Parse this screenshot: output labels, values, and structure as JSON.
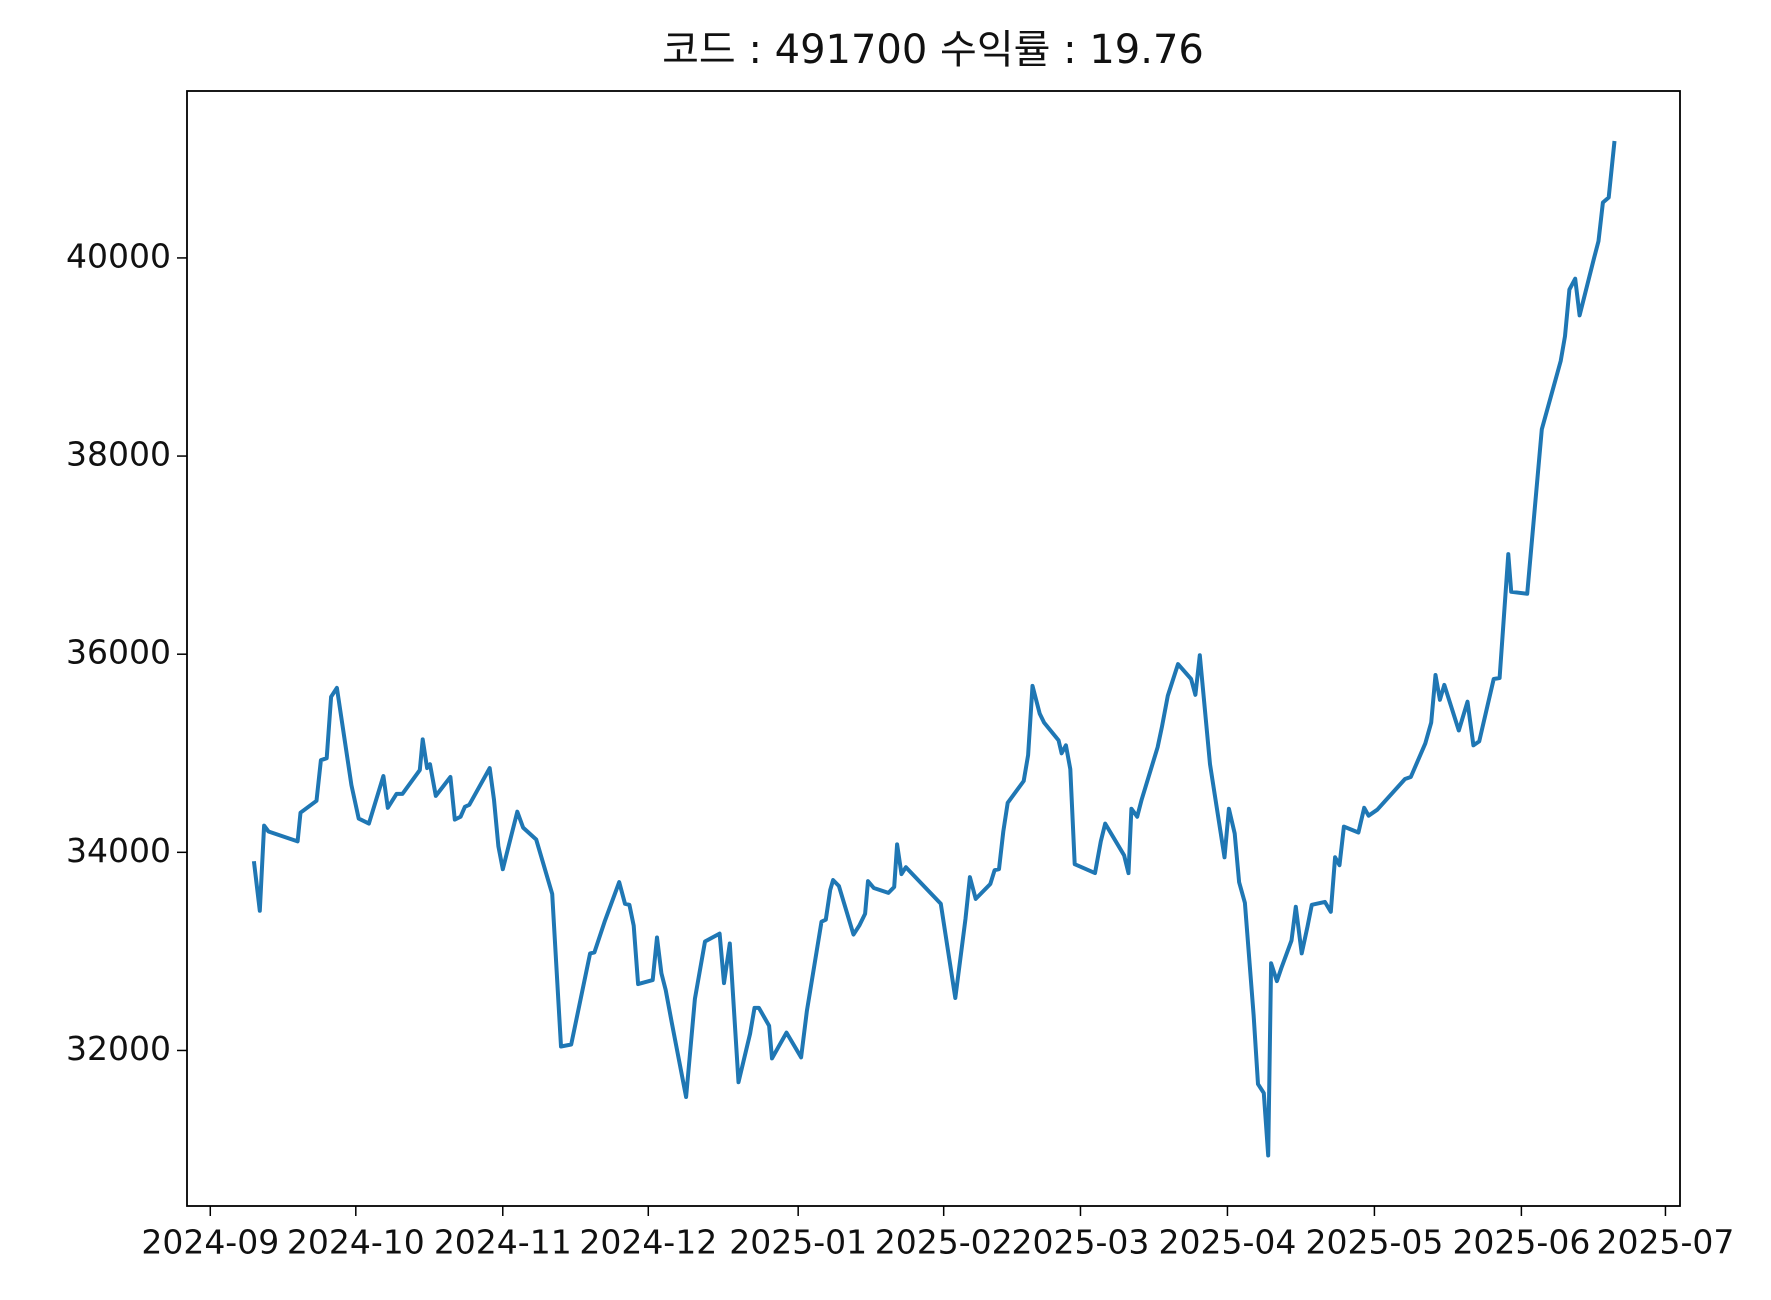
{
  "chart_data": {
    "type": "line",
    "title": "코드 : 491700 수익률 : 19.76",
    "series": [
      {
        "color": "#1f77b4",
        "x": [
          0.3,
          0.34,
          0.37,
          0.4,
          0.6,
          0.62,
          0.73,
          0.76,
          0.8,
          0.83,
          0.87,
          0.97,
          1.02,
          1.09,
          1.19,
          1.22,
          1.28,
          1.32,
          1.44,
          1.46,
          1.49,
          1.51,
          1.55,
          1.65,
          1.68,
          1.72,
          1.75,
          1.78,
          1.92,
          1.95,
          1.98,
          2.01,
          2.11,
          2.15,
          2.24,
          2.35,
          2.41,
          2.48,
          2.61,
          2.64,
          2.71,
          2.81,
          2.85,
          2.88,
          2.91,
          2.94,
          3.04,
          3.07,
          3.1,
          3.13,
          3.17,
          3.27,
          3.33,
          3.4,
          3.5,
          3.53,
          3.57,
          3.63,
          3.71,
          3.74,
          3.77,
          3.84,
          3.86,
          3.96,
          4.06,
          4.1,
          4.2,
          4.23,
          4.26,
          4.28,
          4.32,
          4.42,
          4.46,
          4.5,
          4.52,
          4.56,
          4.66,
          4.7,
          4.72,
          4.75,
          4.78,
          5.02,
          5.12,
          5.19,
          5.22,
          5.26,
          5.36,
          5.39,
          5.42,
          5.45,
          5.48,
          5.59,
          5.62,
          5.65,
          5.7,
          5.73,
          5.83,
          5.85,
          5.88,
          5.91,
          5.94,
          6.08,
          6.12,
          6.15,
          6.28,
          6.31,
          6.33,
          6.37,
          6.4,
          6.51,
          6.54,
          6.58,
          6.65,
          6.74,
          6.77,
          6.8,
          6.87,
          6.97,
          7.0,
          7.04,
          7.07,
          7.11,
          7.17,
          7.2,
          7.24,
          7.27,
          7.29,
          7.33,
          7.36,
          7.43,
          7.46,
          7.5,
          7.54,
          7.57,
          7.66,
          7.7,
          7.73,
          7.76,
          7.79,
          7.89,
          7.93,
          7.96,
          8.02,
          8.21,
          8.25,
          8.35,
          8.39,
          8.42,
          8.45,
          8.48,
          8.58,
          8.64,
          8.68,
          8.72,
          8.82,
          8.86,
          8.92,
          8.94,
          9.05,
          9.15,
          9.28,
          9.31,
          9.34,
          9.38,
          9.41,
          9.51,
          9.54,
          9.57,
          9.61,
          9.65
        ],
        "values": [
          33910,
          33410,
          34270,
          34210,
          34110,
          34400,
          34520,
          34930,
          34950,
          35570,
          35660,
          34680,
          34340,
          34290,
          34770,
          34450,
          34590,
          34590,
          34830,
          35140,
          34850,
          34890,
          34570,
          34760,
          34330,
          34360,
          34460,
          34480,
          34850,
          34530,
          34060,
          33830,
          34410,
          34250,
          34130,
          33580,
          32040,
          32060,
          32980,
          32990,
          33300,
          33700,
          33480,
          33470,
          33260,
          32670,
          32710,
          33140,
          32780,
          32610,
          32290,
          31530,
          32520,
          33100,
          33180,
          32680,
          33080,
          31680,
          32170,
          32430,
          32430,
          32250,
          31920,
          32180,
          31930,
          32400,
          33300,
          33320,
          33620,
          33720,
          33660,
          33170,
          33260,
          33380,
          33710,
          33640,
          33590,
          33650,
          34080,
          33780,
          33850,
          33480,
          32530,
          33330,
          33750,
          33530,
          33680,
          33820,
          33830,
          34210,
          34500,
          34720,
          34980,
          35680,
          35400,
          35310,
          35130,
          35000,
          35080,
          34840,
          33880,
          33790,
          34110,
          34290,
          33970,
          33790,
          34440,
          34360,
          34530,
          35060,
          35270,
          35580,
          35900,
          35750,
          35590,
          35990,
          34890,
          33950,
          34440,
          34190,
          33700,
          33490,
          32360,
          31660,
          31570,
          30940,
          32880,
          32700,
          32830,
          33110,
          33450,
          32980,
          33250,
          33470,
          33500,
          33400,
          33950,
          33870,
          34260,
          34200,
          34450,
          34370,
          34430,
          34740,
          34760,
          35100,
          35310,
          35790,
          35540,
          35690,
          35230,
          35520,
          35080,
          35120,
          35750,
          35760,
          37010,
          36630,
          36610,
          38270,
          38960,
          39210,
          39680,
          39790,
          39420,
          40000,
          40170,
          40560,
          40610,
          41180
        ]
      }
    ],
    "xlim": [
      -0.16,
      10.1
    ],
    "xticks": [
      {
        "value": 0,
        "label": "2024-09"
      },
      {
        "value": 1.0,
        "label": "2024-10"
      },
      {
        "value": 2.01,
        "label": "2024-11"
      },
      {
        "value": 3.01,
        "label": "2024-12"
      },
      {
        "value": 4.04,
        "label": "2025-01"
      },
      {
        "value": 5.04,
        "label": "2025-02"
      },
      {
        "value": 5.98,
        "label": "2025-03"
      },
      {
        "value": 6.99,
        "label": "2025-04"
      },
      {
        "value": 8.0,
        "label": "2025-05"
      },
      {
        "value": 9.01,
        "label": "2025-06"
      },
      {
        "value": 10.0,
        "label": "2025-07"
      }
    ],
    "ylim": [
      30430,
      41685
    ],
    "yticks": [
      32000,
      34000,
      36000,
      38000,
      40000
    ]
  }
}
